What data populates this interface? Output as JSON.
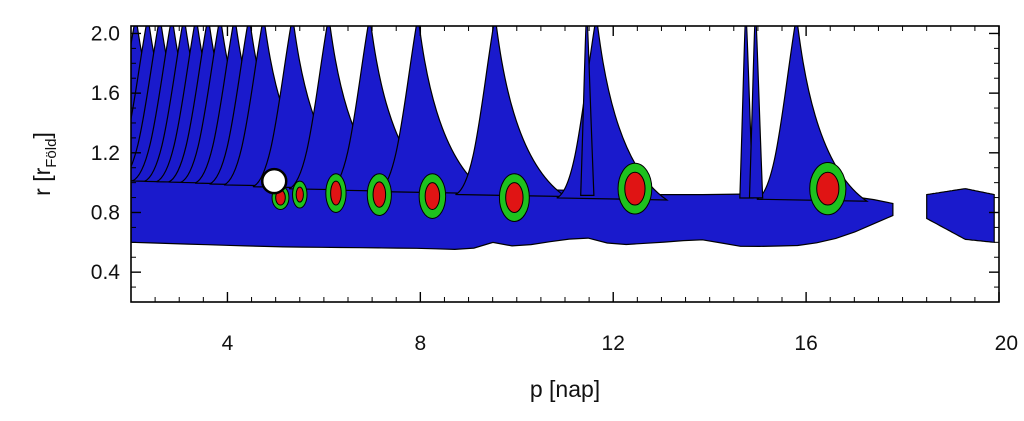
{
  "chart_data": {
    "type": "contour",
    "xlabel": "p [nap]",
    "ylabel": {
      "main": "r [r",
      "sub": "Föld",
      "close": "]"
    },
    "xlim": [
      2,
      20
    ],
    "ylim": [
      0.2,
      2.05
    ],
    "x_ticks": [
      "4",
      "8",
      "12",
      "16",
      "20"
    ],
    "x_tick_values": [
      4,
      8,
      12,
      16,
      20
    ],
    "y_ticks": [
      "0.4",
      "0.8",
      "1.2",
      "1.6",
      "2.0"
    ],
    "y_tick_values": [
      0.4,
      0.8,
      1.2,
      1.6,
      2.0
    ],
    "colors": {
      "outer": "#1a1acc",
      "middle": "#1ec21e",
      "inner": "#e01414",
      "edge": "#000000"
    },
    "marker": {
      "p": 4.97,
      "r": 1.01,
      "shape": "open-circle",
      "color": "#ffffff"
    },
    "band": {
      "p_start": 2.0,
      "p_end": 19.9,
      "gap": [
        17.8,
        18.5
      ],
      "lower": [
        [
          2.0,
          0.6
        ],
        [
          5,
          0.57
        ],
        [
          8,
          0.56
        ],
        [
          9,
          0.55
        ],
        [
          9.5,
          0.6
        ],
        [
          10,
          0.57
        ],
        [
          11,
          0.62
        ],
        [
          11.6,
          0.63
        ],
        [
          12,
          0.58
        ],
        [
          13,
          0.6
        ],
        [
          13.8,
          0.62
        ],
        [
          14.7,
          0.57
        ],
        [
          16,
          0.58
        ],
        [
          16.8,
          0.64
        ],
        [
          17.8,
          0.78
        ],
        [
          18.5,
          0.76
        ],
        [
          19.3,
          0.62
        ],
        [
          19.9,
          0.6
        ]
      ],
      "upper": [
        [
          2.0,
          1.06
        ],
        [
          4,
          1.04
        ],
        [
          6,
          1.0
        ],
        [
          8,
          0.98
        ],
        [
          9.6,
          0.96
        ],
        [
          11,
          0.95
        ],
        [
          12.6,
          0.92
        ],
        [
          14,
          0.92
        ],
        [
          16,
          0.93
        ],
        [
          17.2,
          0.9
        ],
        [
          17.8,
          0.86
        ],
        [
          18.5,
          0.92
        ],
        [
          19.3,
          0.96
        ],
        [
          19.9,
          0.92
        ]
      ]
    },
    "resonances": [
      {
        "p": 2.1,
        "peak": 1.08
      },
      {
        "p": 2.35,
        "peak": 1.09
      },
      {
        "p": 2.6,
        "peak": 1.09
      },
      {
        "p": 2.85,
        "peak": 1.1
      },
      {
        "p": 3.1,
        "peak": 1.1
      },
      {
        "p": 3.35,
        "peak": 1.11
      },
      {
        "p": 3.6,
        "peak": 1.11
      },
      {
        "p": 3.85,
        "peak": 1.12
      },
      {
        "p": 4.15,
        "peak": 1.14
      },
      {
        "p": 4.45,
        "peak": 1.17
      },
      {
        "p": 4.75,
        "peak": 1.21
      },
      {
        "p": 5.35,
        "peak": 1.3
      },
      {
        "p": 6.1,
        "peak": 1.42
      },
      {
        "p": 6.95,
        "peak": 1.56
      },
      {
        "p": 7.95,
        "peak": 1.72
      },
      {
        "p": 9.55,
        "peak": 1.92
      },
      {
        "p": 11.65,
        "peak": 2.1
      },
      {
        "p": 15.8,
        "peak": 2.1
      }
    ],
    "spikes": [
      {
        "p": 11.45,
        "peak": 1.28
      },
      {
        "p": 14.75,
        "peak": 1.28
      },
      {
        "p": 14.95,
        "peak": 2.1
      }
    ],
    "cores": [
      {
        "p": 5.1,
        "r": 0.9,
        "green_w": 0.35,
        "green_h": 0.16,
        "red_w": 0.2,
        "red_h": 0.1
      },
      {
        "p": 5.5,
        "r": 0.92,
        "green_w": 0.3,
        "green_h": 0.18,
        "red_w": 0.15,
        "red_h": 0.1
      },
      {
        "p": 6.25,
        "r": 0.93,
        "green_w": 0.42,
        "green_h": 0.26,
        "red_w": 0.22,
        "red_h": 0.16
      },
      {
        "p": 7.15,
        "r": 0.92,
        "green_w": 0.5,
        "green_h": 0.28,
        "red_w": 0.26,
        "red_h": 0.17
      },
      {
        "p": 8.25,
        "r": 0.91,
        "green_w": 0.55,
        "green_h": 0.3,
        "red_w": 0.3,
        "red_h": 0.18
      },
      {
        "p": 9.95,
        "r": 0.9,
        "green_w": 0.62,
        "green_h": 0.32,
        "red_w": 0.36,
        "red_h": 0.2
      },
      {
        "p": 12.45,
        "r": 0.96,
        "green_w": 0.7,
        "green_h": 0.34,
        "red_w": 0.42,
        "red_h": 0.22
      },
      {
        "p": 16.45,
        "r": 0.96,
        "green_w": 0.75,
        "green_h": 0.35,
        "red_w": 0.46,
        "red_h": 0.22
      }
    ]
  }
}
